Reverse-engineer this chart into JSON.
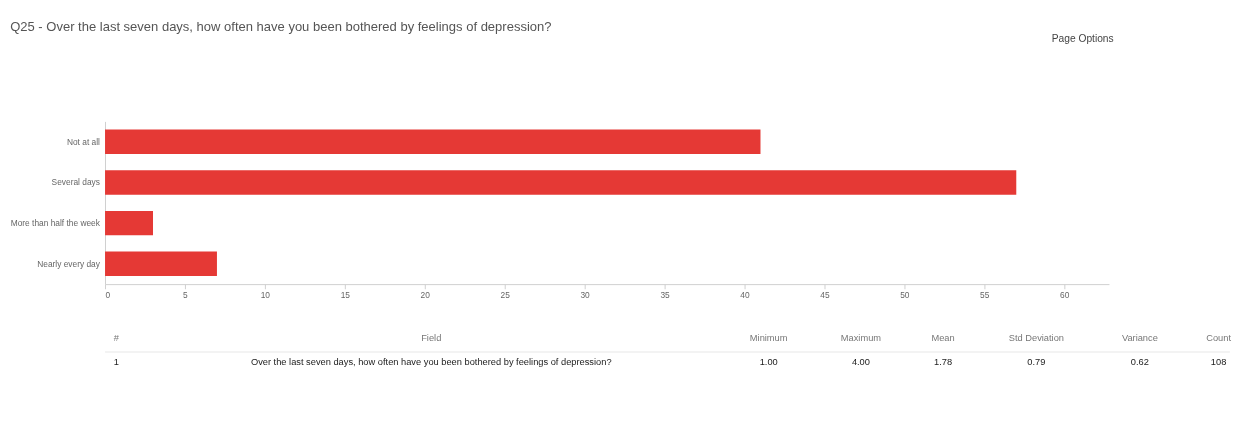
{
  "chart_data": {
    "type": "bar",
    "orientation": "horizontal",
    "title": "Q25 - Over the last seven days, how often have you been bothered by feelings of depression?",
    "categories": [
      "Not at all",
      "Several days",
      "More than half the week",
      "Nearly every day"
    ],
    "values": [
      41,
      57,
      3,
      7
    ],
    "color": "#e53935",
    "xlim": [
      0,
      62.8
    ],
    "xticks": [
      0,
      5,
      10,
      15,
      20,
      25,
      30,
      35,
      40,
      45,
      50,
      55,
      60
    ],
    "grid": false,
    "annotations": [
      "Page Options",
      "#",
      "Field",
      "Minimum",
      "Maximum",
      "Mean",
      "Std Deviation",
      "Variance",
      "Count",
      "1",
      "Over the last seven days, how often have you been bothered by feelings of depression?",
      "1.00",
      "4.00",
      "1.78",
      "0.79",
      "0.62",
      "108"
    ]
  }
}
